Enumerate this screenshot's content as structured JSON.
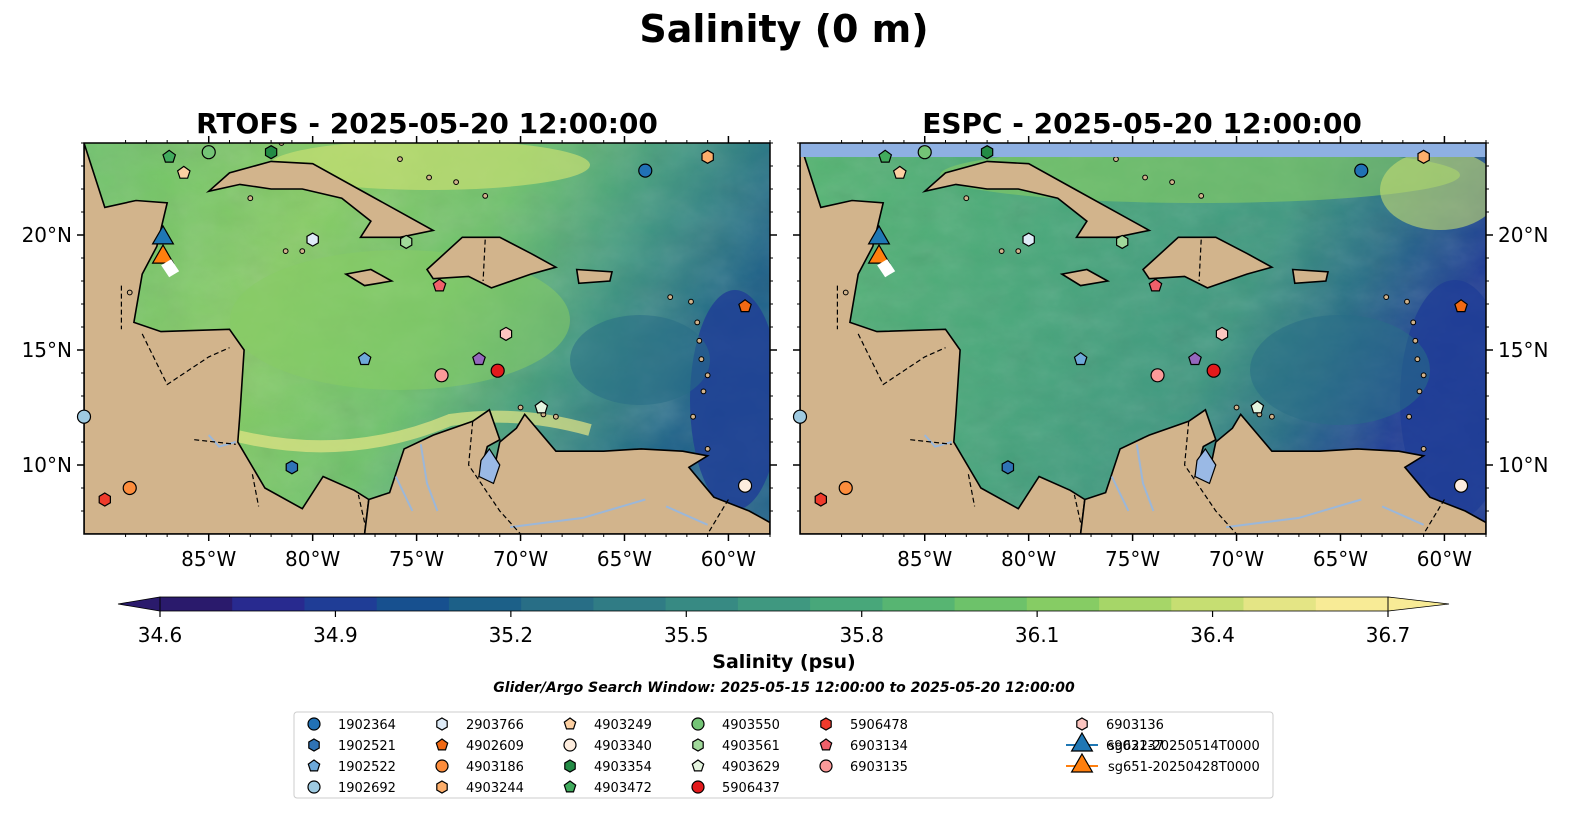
{
  "figure": {
    "suptitle": "Salinity (0 m)",
    "search_window": "Glider/Argo Search Window: 2025-05-15 12:00:00 to 2025-05-20 12:00:00"
  },
  "chart_data": [
    {
      "type": "heatmap",
      "title": "RTOFS - 2025-05-20 12:00:00",
      "model": "RTOFS",
      "xlim": [
        -91,
        -58
      ],
      "ylim": [
        7,
        24
      ],
      "xticks": [
        "85°W",
        "80°W",
        "75°W",
        "70°W",
        "65°W",
        "60°W"
      ],
      "yticks": [
        "20°N",
        "15°N",
        "10°N"
      ],
      "ytick_side": "left",
      "no_data_band": false
    },
    {
      "type": "heatmap",
      "title": "ESPC - 2025-05-20 12:00:00",
      "model": "ESPC",
      "xlim": [
        -91,
        -58
      ],
      "ylim": [
        7,
        24
      ],
      "xticks": [
        "85°W",
        "80°W",
        "75°W",
        "70°W",
        "65°W",
        "60°W"
      ],
      "yticks": [
        "20°N",
        "15°N",
        "10°N"
      ],
      "ytick_side": "right",
      "no_data_band": true
    }
  ],
  "colorbar": {
    "label": "Salinity (psu)",
    "min": 34.6,
    "max": 36.7,
    "ticks": [
      "34.6",
      "34.9",
      "35.2",
      "35.5",
      "35.8",
      "36.1",
      "36.4",
      "36.7"
    ],
    "extend": "both",
    "colormap": "haline",
    "colors": [
      "#2a1a6c",
      "#282a8f",
      "#1f3d96",
      "#17508f",
      "#1c6088",
      "#286e86",
      "#307c85",
      "#378a83",
      "#3f9880",
      "#48a77a",
      "#57b572",
      "#6dc26a",
      "#86cc64",
      "#a6d668",
      "#c6de72",
      "#e4e585",
      "#f8eb96"
    ]
  },
  "map_colors": {
    "land": "#d2b48c",
    "lake": "#9ab9e5",
    "river": "#9bb7d9",
    "no_data": "#8eb0e2"
  },
  "argo_floats": [
    {
      "id": "1902364",
      "marker": "circle",
      "color": "#2171b5",
      "lon": -64.0,
      "lat": 22.8
    },
    {
      "id": "1902521",
      "marker": "hexagon",
      "color": "#2f73b6",
      "lon": -81.0,
      "lat": 9.9
    },
    {
      "id": "1902522",
      "marker": "pentagon",
      "color": "#6ea9d9",
      "lon": -77.5,
      "lat": 14.6
    },
    {
      "id": "1902692",
      "marker": "circle",
      "color": "#9ecae1",
      "lon": -91.0,
      "lat": 12.1
    },
    {
      "id": "2903766",
      "marker": "hexagon",
      "color": "#deebf7",
      "lon": -80.0,
      "lat": 19.8
    },
    {
      "id": "4902609",
      "marker": "pentagon",
      "color": "#f16913",
      "lon": -59.2,
      "lat": 16.9
    },
    {
      "id": "4903186",
      "marker": "circle",
      "color": "#fd8d3c",
      "lon": -88.8,
      "lat": 9.0
    },
    {
      "id": "4903244",
      "marker": "hexagon",
      "color": "#fdae6b",
      "lon": -61.0,
      "lat": 23.4
    },
    {
      "id": "4903249",
      "marker": "pentagon",
      "color": "#fdd0a2",
      "lon": -86.2,
      "lat": 22.7
    },
    {
      "id": "4903340",
      "marker": "circle",
      "color": "#feedde",
      "lon": -59.2,
      "lat": 9.1
    },
    {
      "id": "4903354",
      "marker": "hexagon",
      "color": "#238b45",
      "lon": -82.0,
      "lat": 23.6
    },
    {
      "id": "4903472",
      "marker": "pentagon",
      "color": "#41ab5d",
      "lon": -86.9,
      "lat": 23.4
    },
    {
      "id": "4903550",
      "marker": "circle",
      "color": "#74c476",
      "lon": -85.0,
      "lat": 23.6
    },
    {
      "id": "4903561",
      "marker": "hexagon",
      "color": "#a1d99b",
      "lon": -75.5,
      "lat": 19.7
    },
    {
      "id": "4903629",
      "marker": "pentagon",
      "color": "#e5f5e0",
      "lon": -69.0,
      "lat": 12.5
    },
    {
      "id": "5906437",
      "marker": "circle",
      "color": "#e31a1c",
      "lon": -71.1,
      "lat": 14.1
    },
    {
      "id": "5906478",
      "marker": "hexagon",
      "color": "#ef3b2c",
      "lon": -90.0,
      "lat": 8.5
    },
    {
      "id": "6903134",
      "marker": "pentagon",
      "color": "#f0606a",
      "lon": -73.9,
      "lat": 17.8
    },
    {
      "id": "6903135",
      "marker": "circle",
      "color": "#fb9a99",
      "lon": -73.8,
      "lat": 13.9
    },
    {
      "id": "6903136",
      "marker": "hexagon",
      "color": "#fcc5c0",
      "lon": -70.7,
      "lat": 15.7
    },
    {
      "id": "6903137",
      "marker": "pentagon",
      "color": "#9467bd",
      "lon": -72.0,
      "lat": 14.6
    }
  ],
  "gliders": [
    {
      "id": "sg622-20250514T0000",
      "color": "#1f77b4",
      "lon": -87.2,
      "lat": 19.7
    },
    {
      "id": "sg651-20250428T0000",
      "color": "#ff7f0e",
      "lon": -87.2,
      "lat": 19.3
    }
  ]
}
